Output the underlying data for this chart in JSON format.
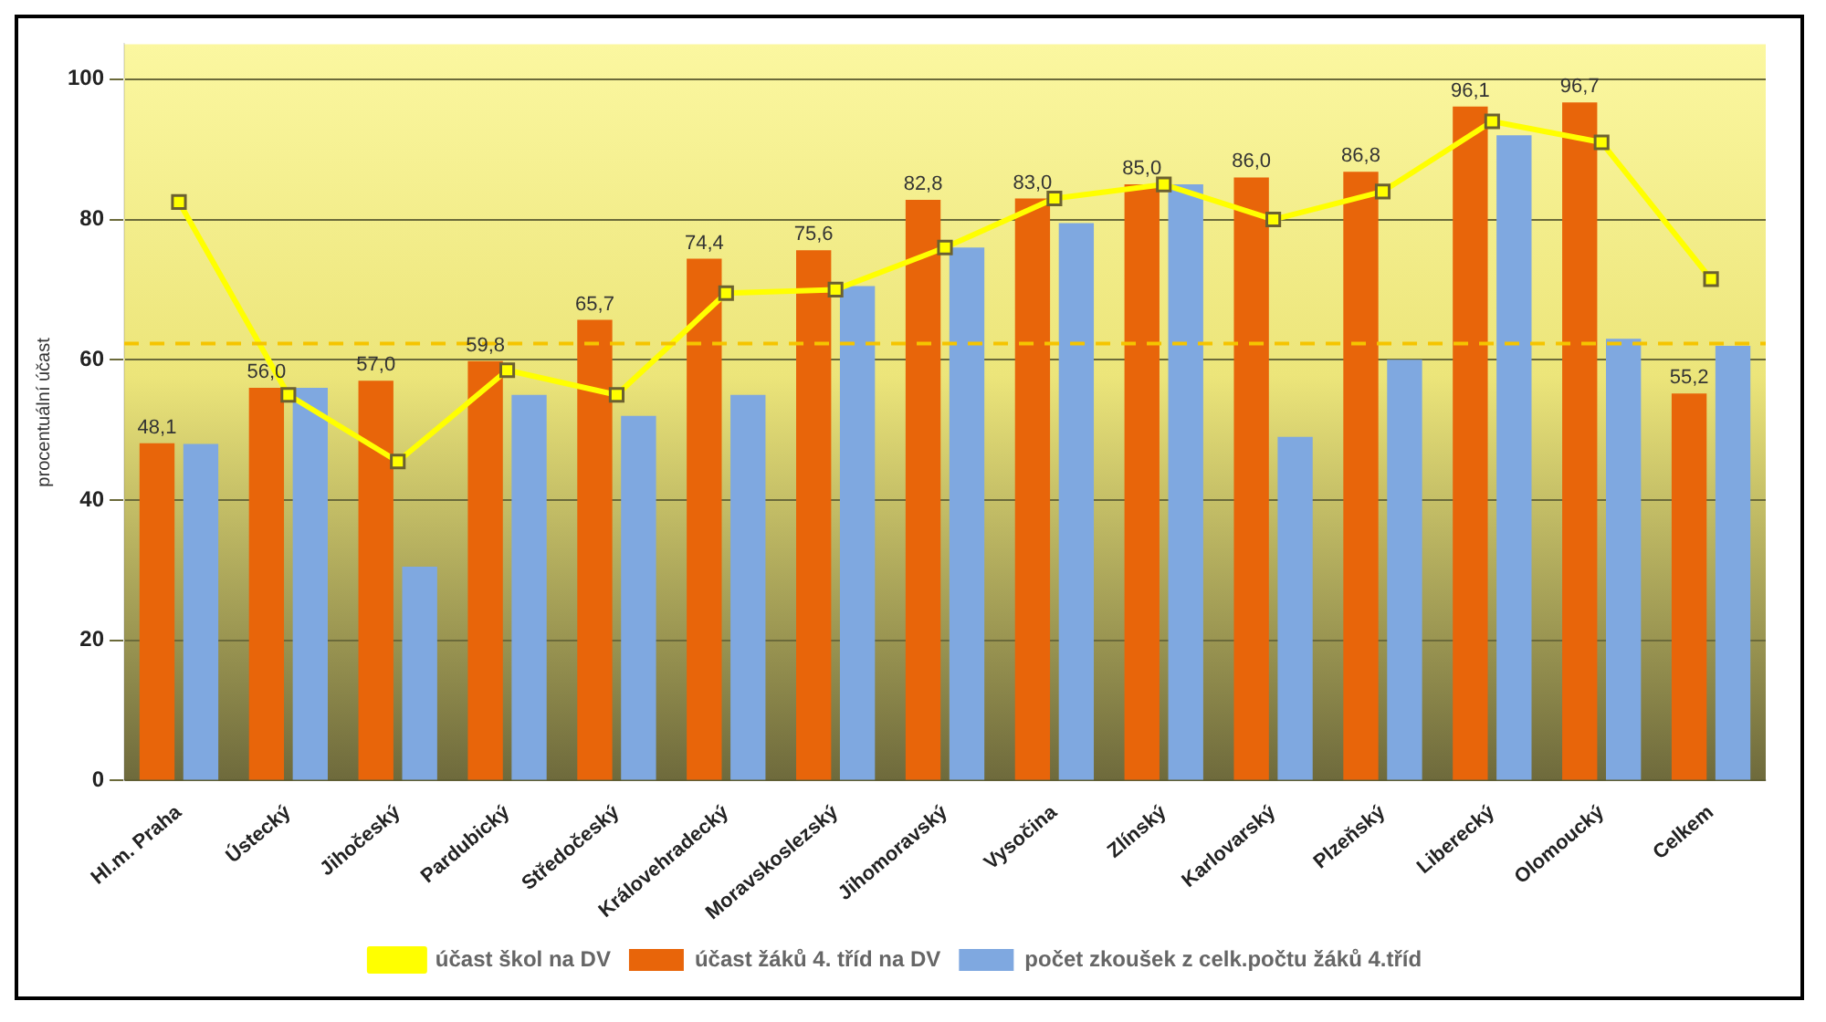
{
  "chart_data": {
    "type": "bar",
    "ylabel": "procentuální účast",
    "categories": [
      "Hl.m. Praha",
      "Ústecký",
      "Jihočeský",
      "Pardubický",
      "Středočeský",
      "Královehradecký",
      "Moravskoslezský",
      "Jihomoravský",
      "Vysočina",
      "Zlínský",
      "Karlovarský",
      "Plzeňský",
      "Liberecký",
      "Olomoucký",
      "Celkem"
    ],
    "series": [
      {
        "name": "účast žáků 4. tříd na DV",
        "color": "#e8650a",
        "values": [
          48.1,
          56.0,
          57.0,
          59.8,
          65.7,
          74.4,
          75.6,
          82.8,
          83.0,
          85.0,
          86.0,
          86.8,
          96.1,
          96.7,
          55.2
        ],
        "value_labels": [
          "48,1",
          "56,0",
          "57,0",
          "59,8",
          "65,7",
          "74,4",
          "75,6",
          "82,8",
          "83,0",
          "85,0",
          "86,0",
          "86,8",
          "96,1",
          "96,7",
          "55,2"
        ]
      },
      {
        "name": "počet zkoušek z celk.počtu žáků 4.tříd",
        "color": "#7fa8e0",
        "values": [
          48,
          56,
          30.5,
          55,
          52,
          55,
          70.5,
          76,
          79.5,
          85,
          49,
          60,
          92,
          63,
          62
        ]
      },
      {
        "name": "účast škol na DV",
        "type": "line",
        "color": "#ffff00",
        "marker": "square",
        "values": [
          82.5,
          55,
          45.5,
          58.5,
          55,
          69.5,
          70,
          76,
          83,
          85,
          80,
          84,
          94,
          91,
          71.5
        ]
      }
    ],
    "ylim": [
      0,
      105
    ],
    "yticks": [
      0,
      20,
      40,
      60,
      80,
      100
    ],
    "grid": "y",
    "legend": "bottom",
    "ref_lines": [
      {
        "axis": "y",
        "value": 62.3,
        "color": "#f5c400",
        "line_style": "dashed"
      }
    ]
  }
}
